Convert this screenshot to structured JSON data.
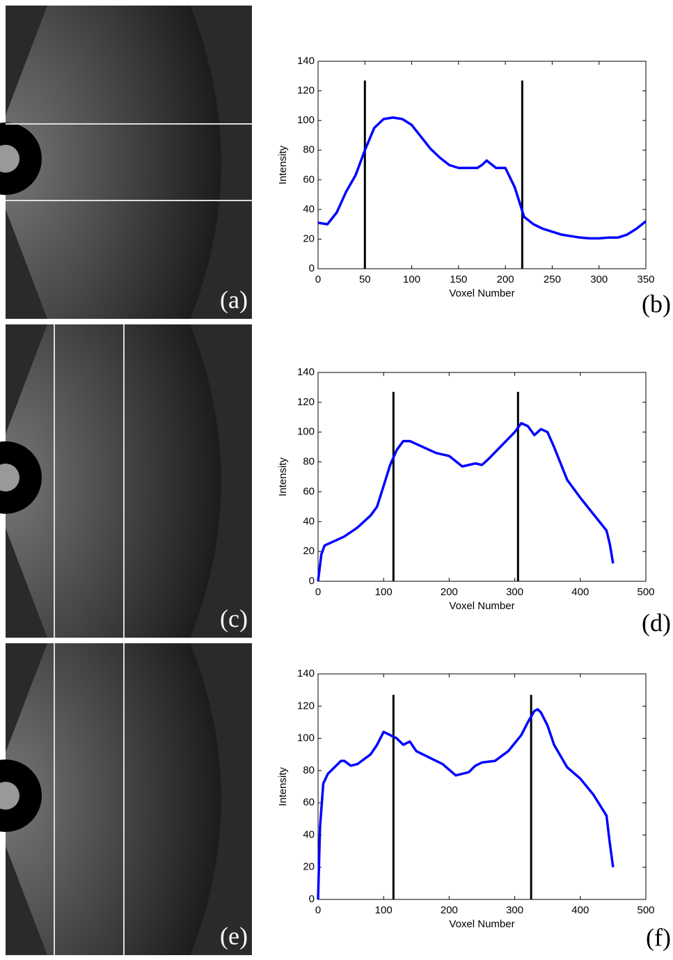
{
  "images": [
    {
      "label": "(a)"
    },
    {
      "label": "(c)"
    },
    {
      "label": "(e)"
    }
  ],
  "chart_data": [
    {
      "type": "line",
      "panel_label": "(b)",
      "xlabel": "Voxel Number",
      "ylabel": "Intensity",
      "xlim": [
        0,
        350
      ],
      "xticks": [
        0,
        50,
        100,
        150,
        200,
        250,
        300,
        350
      ],
      "ylim": [
        0,
        140
      ],
      "yticks": [
        0,
        20,
        40,
        60,
        80,
        100,
        120,
        140
      ],
      "x": [
        0,
        10,
        20,
        30,
        40,
        50,
        60,
        70,
        80,
        90,
        100,
        110,
        120,
        130,
        140,
        150,
        160,
        170,
        175,
        180,
        190,
        200,
        210,
        220,
        230,
        240,
        250,
        260,
        270,
        280,
        290,
        300,
        310,
        320,
        330,
        340,
        350
      ],
      "series": [
        {
          "color": "#0000ff",
          "values": [
            31,
            30,
            38,
            52,
            63,
            80,
            95,
            101,
            102,
            101,
            97,
            89,
            81,
            75,
            70,
            68,
            68,
            68,
            70,
            73,
            68,
            68,
            55,
            35,
            30,
            27,
            25,
            23,
            22,
            21,
            20.5,
            20.5,
            21,
            21,
            23,
            27,
            32
          ]
        }
      ],
      "vlines": {
        "color": "#000000",
        "x": [
          50,
          218
        ],
        "values": [
          127,
          127
        ]
      }
    },
    {
      "type": "line",
      "panel_label": "(d)",
      "xlabel": "Voxel Number",
      "ylabel": "Intensity",
      "xlim": [
        0,
        500
      ],
      "xticks": [
        0,
        100,
        200,
        300,
        400,
        500
      ],
      "ylim": [
        0,
        140
      ],
      "yticks": [
        0,
        20,
        40,
        60,
        80,
        100,
        120,
        140
      ],
      "x": [
        0,
        5,
        10,
        20,
        40,
        60,
        80,
        90,
        100,
        110,
        120,
        130,
        140,
        160,
        180,
        200,
        220,
        240,
        250,
        260,
        280,
        300,
        310,
        320,
        330,
        340,
        350,
        360,
        380,
        400,
        420,
        440,
        445,
        450
      ],
      "series": [
        {
          "color": "#0000ff",
          "values": [
            0,
            18,
            24,
            26,
            30,
            36,
            44,
            50,
            64,
            78,
            88,
            94,
            94,
            90,
            86,
            84,
            77,
            79,
            78,
            82,
            91,
            100,
            106,
            104,
            98,
            102,
            100,
            90,
            68,
            56,
            45,
            34,
            25,
            12
          ]
        }
      ],
      "vlines": {
        "color": "#000000",
        "x": [
          115,
          305
        ],
        "values": [
          127,
          127
        ]
      }
    },
    {
      "type": "line",
      "panel_label": "(f)",
      "xlabel": "Voxel Number",
      "ylabel": "Intensity",
      "xlim": [
        0,
        500
      ],
      "xticks": [
        0,
        100,
        200,
        300,
        400,
        500
      ],
      "ylim": [
        0,
        140
      ],
      "yticks": [
        0,
        20,
        40,
        60,
        80,
        100,
        120,
        140
      ],
      "x": [
        0,
        3,
        8,
        15,
        25,
        35,
        40,
        50,
        60,
        70,
        80,
        90,
        100,
        110,
        120,
        130,
        140,
        150,
        170,
        190,
        210,
        230,
        240,
        250,
        270,
        290,
        310,
        320,
        330,
        335,
        340,
        350,
        360,
        380,
        400,
        420,
        440,
        445,
        450
      ],
      "series": [
        {
          "color": "#0000ff",
          "values": [
            0,
            45,
            72,
            78,
            82,
            86,
            86,
            83,
            84,
            87,
            90,
            96,
            104,
            102,
            100,
            96,
            98,
            92,
            88,
            84,
            77,
            79,
            83,
            85,
            86,
            92,
            102,
            110,
            117,
            118,
            116,
            108,
            96,
            82,
            75,
            65,
            52,
            35,
            20
          ]
        }
      ],
      "vlines": {
        "color": "#000000",
        "x": [
          115,
          325
        ],
        "values": [
          127,
          127
        ]
      }
    }
  ]
}
